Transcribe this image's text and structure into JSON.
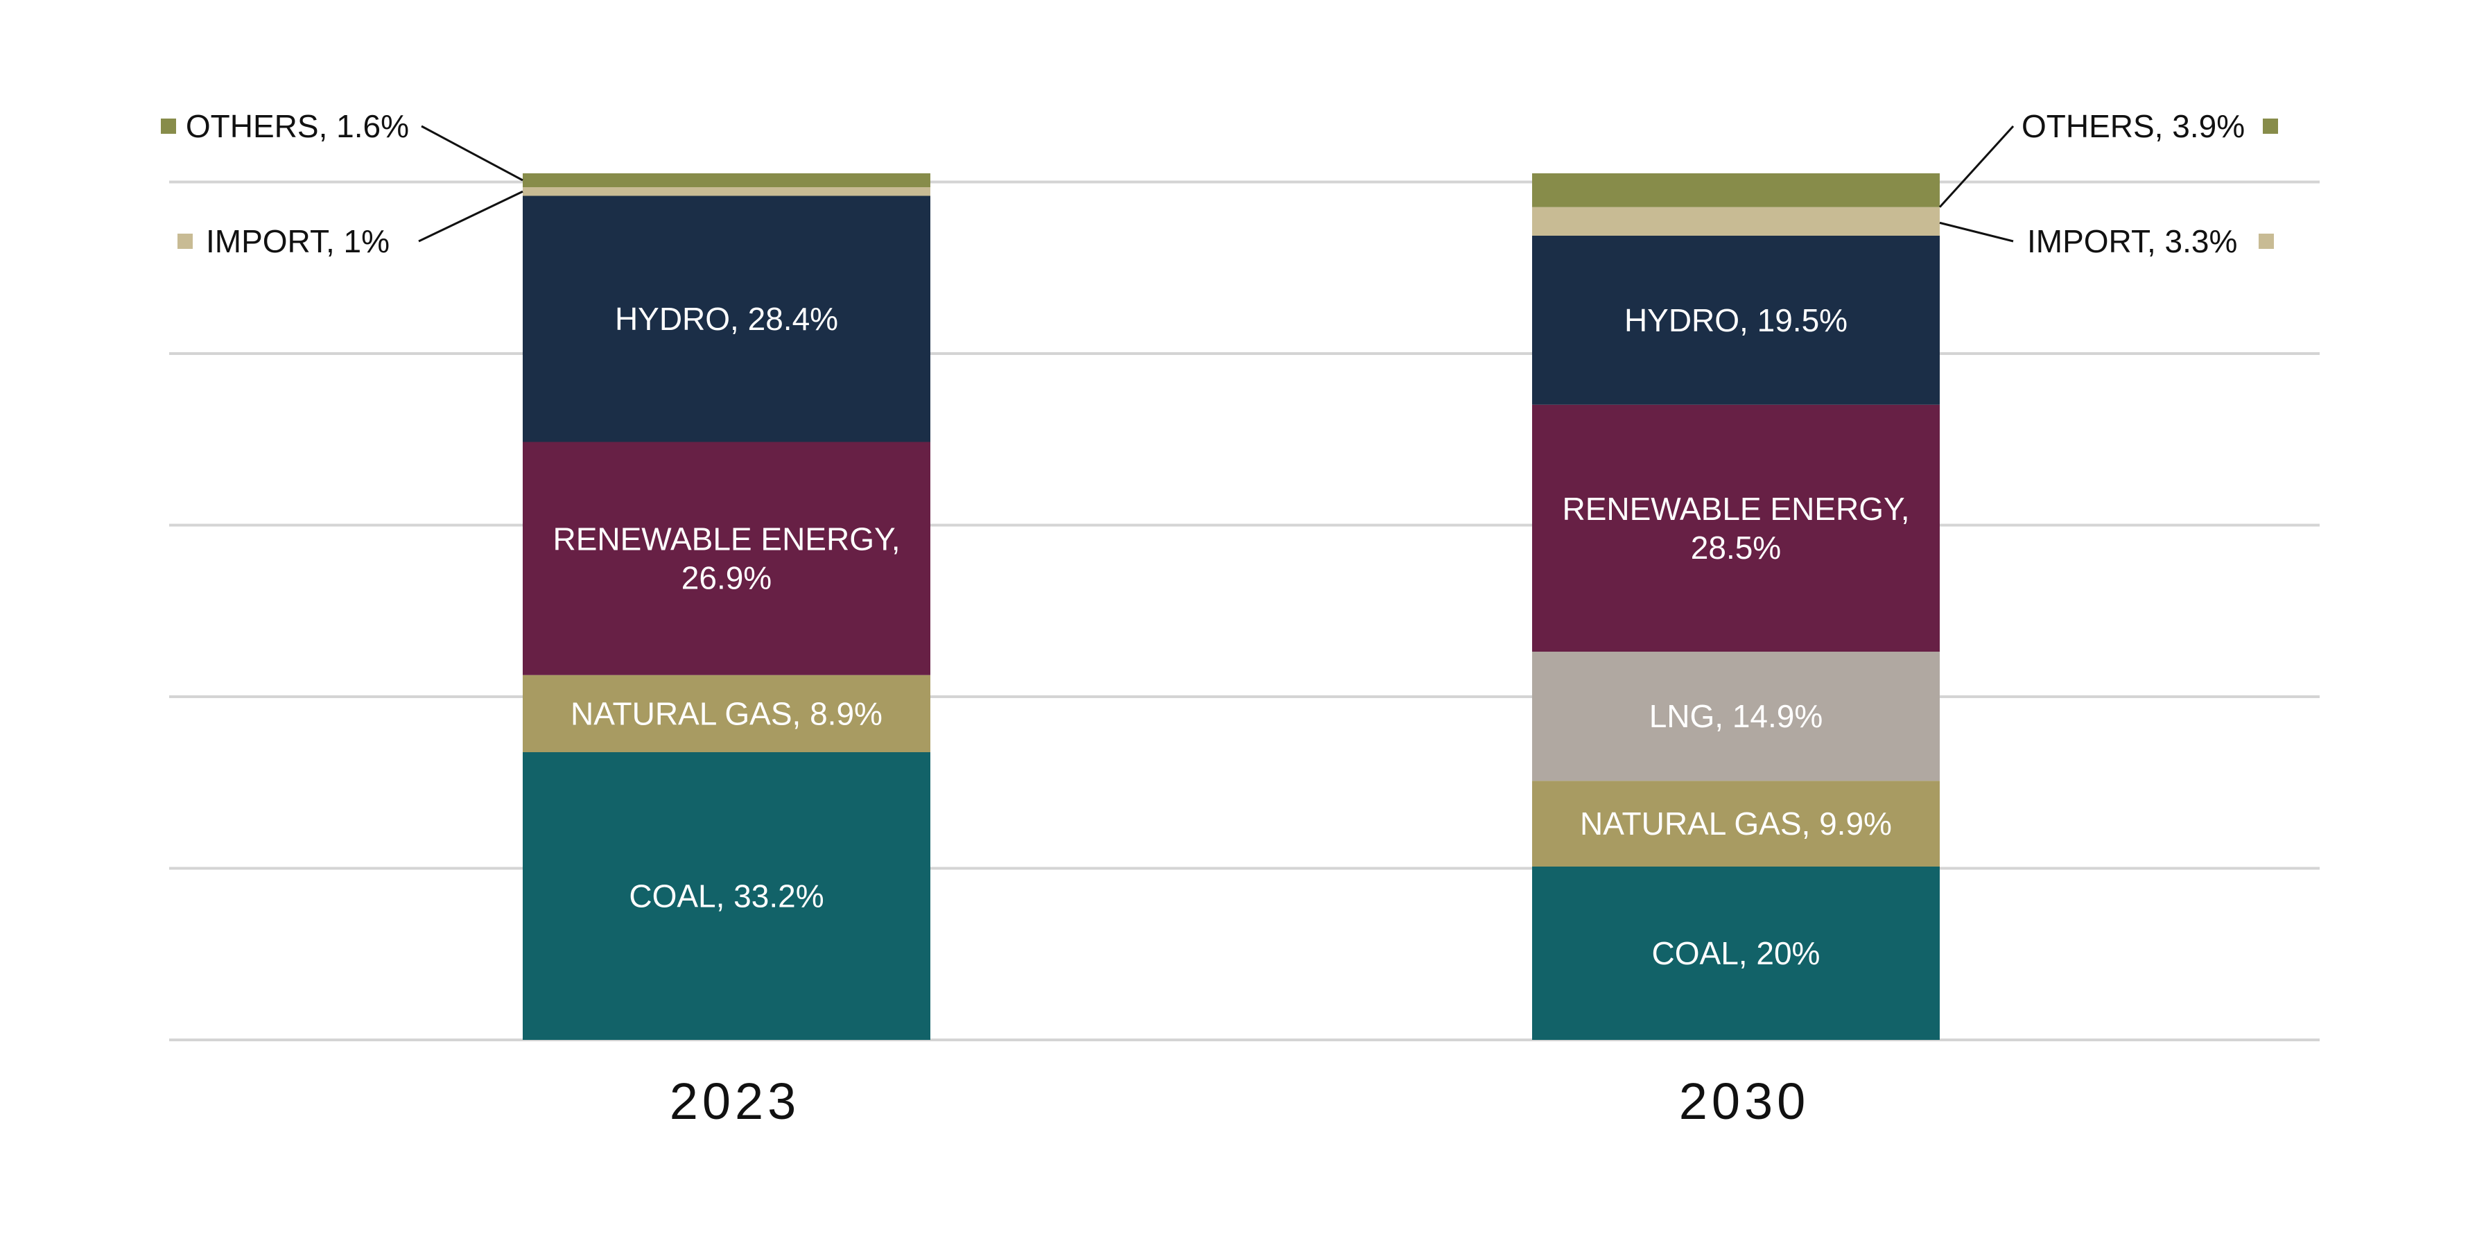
{
  "chart_data": {
    "type": "bar",
    "stacked": true,
    "categories": [
      "2023",
      "2030"
    ],
    "ylim": [
      0,
      103
    ],
    "grid": true,
    "series": [
      {
        "name": "COAL",
        "color": "#126268",
        "values": [
          33.2,
          20
        ]
      },
      {
        "name": "NATURAL GAS",
        "color": "#a89b62",
        "values": [
          8.9,
          9.9
        ]
      },
      {
        "name": "LNG",
        "color": "#b0a8a1",
        "values": [
          0,
          14.9
        ]
      },
      {
        "name": "RENEWABLE ENERGY",
        "color": "#672045",
        "values": [
          26.9,
          28.5
        ]
      },
      {
        "name": "HYDRO",
        "color": "#1b2e47",
        "values": [
          28.4,
          19.5
        ]
      },
      {
        "name": "IMPORT",
        "color": "#c8bb94",
        "values": [
          1,
          3.3
        ]
      },
      {
        "name": "OTHERS",
        "color": "#878c4a",
        "values": [
          1.6,
          3.9
        ]
      }
    ],
    "segment_labels": [
      [
        "COAL, 33.2%",
        "NATURAL GAS, 8.9%",
        "",
        "RENEWABLE ENERGY,\n26.9%",
        "HYDRO, 28.4%",
        "",
        ""
      ],
      [
        "COAL, 20%",
        "NATURAL GAS, 9.9%",
        "LNG, 14.9%",
        "RENEWABLE ENERGY,\n28.5%",
        "HYDRO, 19.5%",
        "",
        ""
      ]
    ],
    "callouts": [
      {
        "bar": 0,
        "series": 6,
        "side": "left",
        "text": "OTHERS, 1.6%"
      },
      {
        "bar": 0,
        "series": 5,
        "side": "left",
        "text": "IMPORT, 1%"
      },
      {
        "bar": 1,
        "series": 6,
        "side": "right",
        "text": "OTHERS, 3.9%"
      },
      {
        "bar": 1,
        "series": 5,
        "side": "right",
        "text": "IMPORT, 3.3%"
      }
    ]
  }
}
